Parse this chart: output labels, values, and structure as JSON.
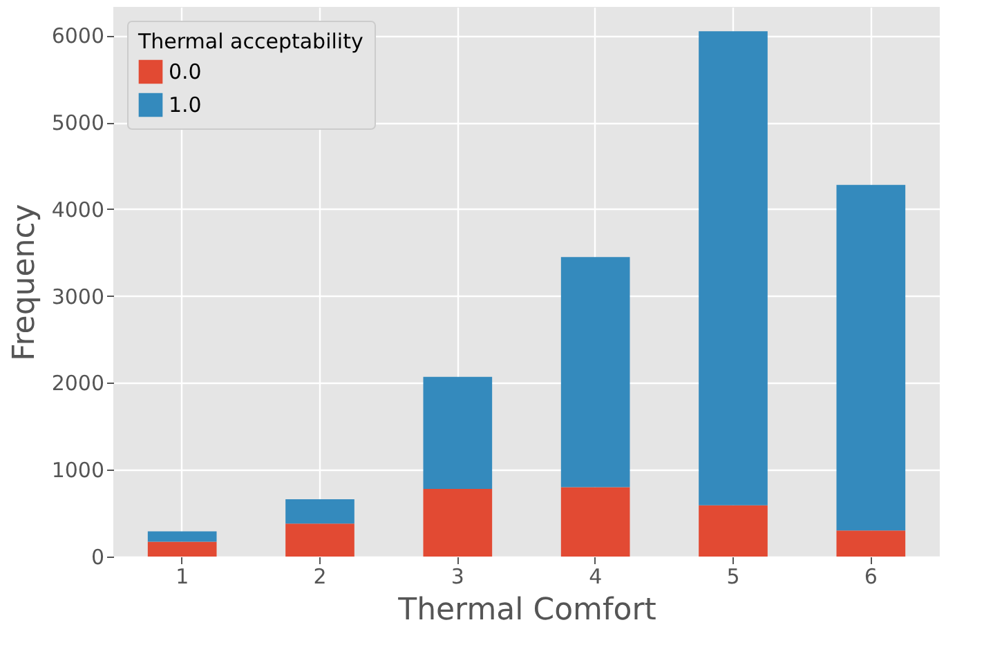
{
  "chart_data": {
    "type": "bar",
    "stacked": true,
    "xlabel": "Thermal Comfort",
    "ylabel": "Frequency",
    "legend_title": "Thermal acceptability",
    "legend": "top left",
    "grid": true,
    "categories": [
      "1",
      "2",
      "3",
      "4",
      "5",
      "6"
    ],
    "series": [
      {
        "name": "0.0",
        "color": "#e24a33",
        "values": [
          170,
          380,
          780,
          800,
          590,
          300
        ]
      },
      {
        "name": "1.0",
        "color": "#348abd",
        "values": [
          120,
          280,
          1290,
          2650,
          5460,
          3980
        ]
      }
    ],
    "ylim": [
      0,
      6330
    ],
    "yticks": [
      0,
      1000,
      2000,
      3000,
      4000,
      5000,
      6000
    ]
  }
}
